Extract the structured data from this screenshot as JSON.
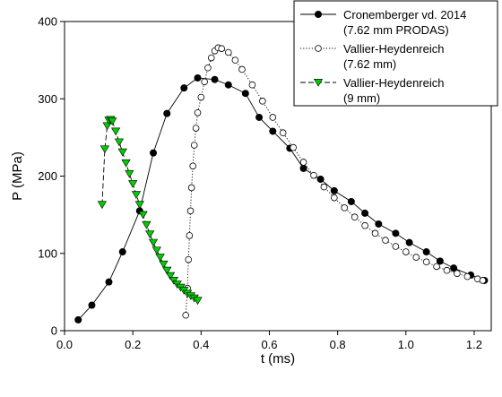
{
  "chart_data": {
    "type": "scatter",
    "title": "",
    "xlabel": "t (ms)",
    "ylabel": "P (MPa)",
    "xlim": [
      0.0,
      1.25
    ],
    "ylim": [
      0,
      400
    ],
    "xticks": [
      "0.0",
      "0.2",
      "0.4",
      "0.6",
      "0.8",
      "1.0",
      "1.2"
    ],
    "yticks": [
      "0",
      "100",
      "200",
      "300",
      "400"
    ],
    "xtick_values": [
      0.0,
      0.2,
      0.4,
      0.6,
      0.8,
      1.0,
      1.2
    ],
    "ytick_values": [
      0,
      100,
      200,
      300,
      400
    ],
    "grid": false,
    "legend_position": "top-right",
    "legend_lines": [
      [
        "Cronemberger vd. 2014",
        "(7.62 mm PRODAS)"
      ],
      [
        "Vallier-Heydenreich",
        "(7.62 mm)"
      ],
      [
        "Vallier-Heydenreich",
        "(9 mm)"
      ]
    ],
    "series": [
      {
        "name": "Cronemberger vd. 2014 (7.62 mm PRODAS)",
        "color": "#000000",
        "marker": "filled-circle",
        "line": "solid",
        "x": [
          0.04,
          0.08,
          0.13,
          0.17,
          0.22,
          0.26,
          0.3,
          0.35,
          0.39,
          0.44,
          0.48,
          0.53,
          0.57,
          0.61,
          0.66,
          0.7,
          0.75,
          0.79,
          0.84,
          0.88,
          0.92,
          0.97,
          1.01,
          1.06,
          1.1,
          1.14,
          1.19,
          1.23
        ],
        "y": [
          14,
          33,
          63,
          102,
          155,
          230,
          281,
          314,
          327,
          325,
          318,
          307,
          276,
          258,
          236,
          210,
          196,
          181,
          167,
          152,
          138,
          126,
          114,
          102,
          90,
          81,
          72,
          65
        ]
      },
      {
        "name": "Vallier-Heydenreich (7.62 mm)",
        "color": "#000000",
        "marker": "open-circle",
        "line": "dotted",
        "x": [
          0.355,
          0.36,
          0.363,
          0.366,
          0.369,
          0.372,
          0.376,
          0.38,
          0.385,
          0.39,
          0.4,
          0.41,
          0.42,
          0.43,
          0.44,
          0.45,
          0.46,
          0.48,
          0.5,
          0.52,
          0.55,
          0.58,
          0.61,
          0.64,
          0.67,
          0.7,
          0.73,
          0.76,
          0.79,
          0.82,
          0.85,
          0.88,
          0.91,
          0.94,
          0.97,
          1.0,
          1.03,
          1.06,
          1.09,
          1.12,
          1.15,
          1.18,
          1.21,
          1.225
        ],
        "y": [
          20,
          55,
          92,
          123,
          155,
          185,
          213,
          240,
          262,
          282,
          302,
          322,
          340,
          353,
          362,
          366,
          365,
          360,
          350,
          338,
          318,
          297,
          276,
          256,
          237,
          218,
          201,
          186,
          172,
          159,
          147,
          136,
          126,
          117,
          109,
          102,
          95,
          89,
          83,
          78,
          74,
          70,
          67,
          65
        ]
      },
      {
        "name": "Vallier-Heydenreich (9 mm)",
        "color": "#00cc00",
        "marker": "filled-triangle-down",
        "line": "dashed",
        "x": [
          0.11,
          0.118,
          0.125,
          0.13,
          0.135,
          0.14,
          0.15,
          0.16,
          0.17,
          0.18,
          0.19,
          0.2,
          0.21,
          0.22,
          0.23,
          0.24,
          0.25,
          0.26,
          0.27,
          0.28,
          0.29,
          0.3,
          0.31,
          0.32,
          0.33,
          0.34,
          0.35,
          0.36,
          0.37,
          0.38,
          0.39
        ],
        "y": [
          163,
          235,
          265,
          272,
          273,
          271,
          258,
          244,
          231,
          217,
          203,
          190,
          176,
          163,
          150,
          137,
          125,
          114,
          104,
          95,
          86,
          78,
          71,
          65,
          60,
          56,
          52,
          48,
          45,
          42,
          39
        ]
      }
    ]
  }
}
